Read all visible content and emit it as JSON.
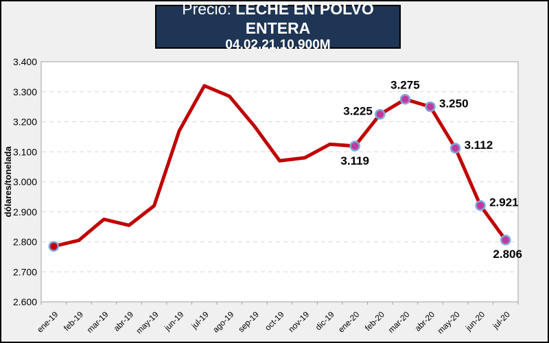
{
  "header": {
    "title_prefix": "Precio:",
    "title_main": "LECHE EN POLVO ENTERA",
    "subtitle": "04.02.21.10.900M",
    "bg": "#1E3555",
    "text_color": "#FFFFFF"
  },
  "chart_data": {
    "type": "line",
    "title": "Precio: LECHE EN POLVO ENTERA 04.02.21.10.900M",
    "xlabel": "",
    "ylabel": "dólares/tonelada",
    "ylim": [
      2.6,
      3.4
    ],
    "ytick_labels": [
      "3.400",
      "3.300",
      "3.200",
      "3.100",
      "3.000",
      "2.900",
      "2.800",
      "2.700",
      "2.600"
    ],
    "grid": "dashed-horizontal",
    "legend": "none",
    "categories": [
      "ene-19",
      "feb-19",
      "mar-19",
      "abr-19",
      "may-19",
      "jun-19",
      "jul-19",
      "ago-19",
      "sep-19",
      "oct-19",
      "nov-19",
      "dic-19",
      "ene-20",
      "feb-20",
      "mar-20",
      "abr-20",
      "may-20",
      "jun-20",
      "jul-20"
    ],
    "values": [
      2.785,
      2.805,
      2.875,
      2.855,
      2.92,
      3.17,
      3.32,
      3.285,
      3.185,
      3.07,
      3.08,
      3.125,
      3.119,
      3.225,
      3.275,
      3.25,
      3.112,
      2.921,
      2.806
    ],
    "points": [
      {
        "category": "ene-19",
        "index": 0,
        "marker": true,
        "fill": "first",
        "label": "",
        "label_pos": ""
      },
      {
        "category": "ene-20",
        "index": 12,
        "marker": true,
        "fill": "normal",
        "label": "3.119",
        "label_pos": "below-left"
      },
      {
        "category": "feb-20",
        "index": 13,
        "marker": true,
        "fill": "normal",
        "label": "3.225",
        "label_pos": "above-left"
      },
      {
        "category": "mar-20",
        "index": 14,
        "marker": true,
        "fill": "normal",
        "label": "3.275",
        "label_pos": "above"
      },
      {
        "category": "abr-20",
        "index": 15,
        "marker": true,
        "fill": "normal",
        "label": "3.250",
        "label_pos": "right"
      },
      {
        "category": "may-20",
        "index": 16,
        "marker": true,
        "fill": "normal",
        "label": "3.112",
        "label_pos": "right"
      },
      {
        "category": "jun-20",
        "index": 17,
        "marker": true,
        "fill": "normal",
        "label": "2.921",
        "label_pos": "right"
      },
      {
        "category": "jul-20",
        "index": 18,
        "marker": true,
        "fill": "normal",
        "label": "2.806",
        "label_pos": "below"
      }
    ],
    "line_color": "#C00000",
    "marker_fill": "#C0399E",
    "marker_stroke": "#7FA7DC",
    "plot_bg": "#FFFFFF",
    "plot_border": "#A0A0A0",
    "gridline_color": "#D5D5D5",
    "outer_bg": "#F0F0F0"
  }
}
